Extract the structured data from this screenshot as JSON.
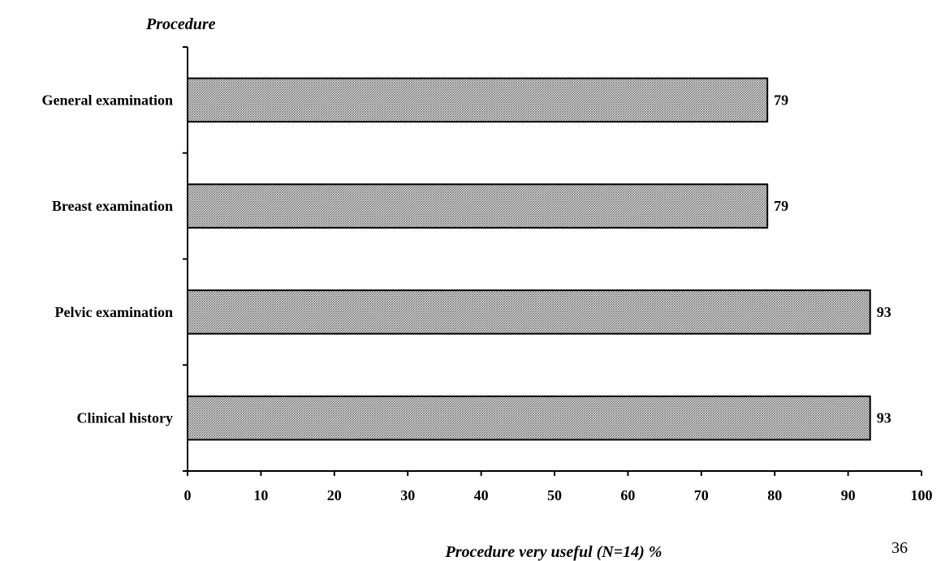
{
  "chart_data": {
    "type": "bar",
    "orientation": "horizontal",
    "categories": [
      "Clinical history",
      "Pelvic examination",
      "Breast examination",
      "General examination"
    ],
    "values": [
      93,
      93,
      79,
      79
    ],
    "data_labels": [
      "93",
      "93",
      "79",
      "79"
    ],
    "ylabel": "Procedure",
    "xlabel": "Procedure very useful (N=14) %",
    "xlim": [
      0,
      100
    ],
    "xticks": [
      "0",
      "10",
      "20",
      "30",
      "40",
      "50",
      "60",
      "70",
      "80",
      "90",
      "100"
    ],
    "grid": false,
    "bar_fill": "crosshatch",
    "bar_color": "#000000"
  },
  "page_number": "36"
}
